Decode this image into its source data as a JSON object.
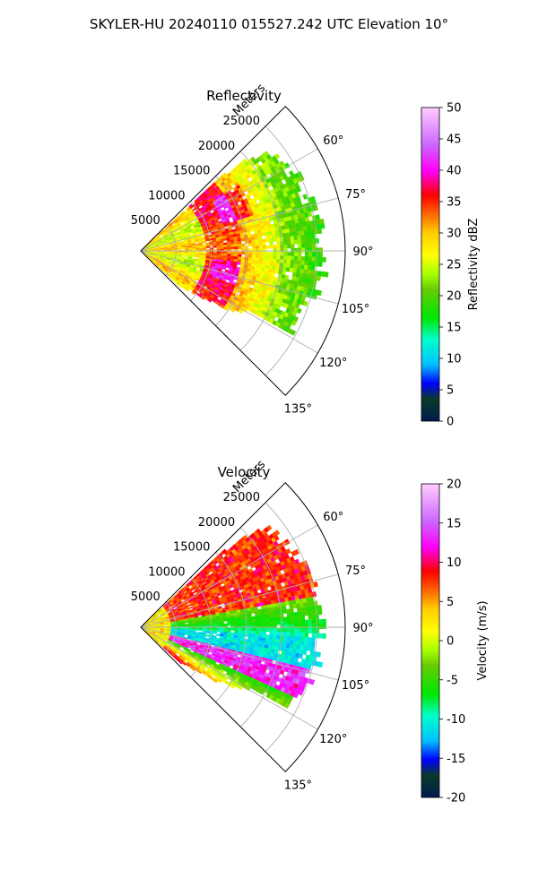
{
  "figure": {
    "title": "SKYLER-HU  20240110  015527.242 UTC Elevation 10°"
  },
  "chart_data": [
    {
      "type": "heatmap",
      "projection": "polar-sector",
      "title": "Reflectivity",
      "radial_label": "Meters",
      "radial_ticks": [
        5000,
        10000,
        15000,
        20000,
        25000
      ],
      "radial_max": 29000,
      "azimuth_ticks": [
        "60°",
        "75°",
        "90°",
        "105°",
        "120°",
        "135°"
      ],
      "azimuth_range_deg": [
        45,
        135
      ],
      "grid": true,
      "colorbar": {
        "label": "Reflectivity dBZ",
        "ticks": [
          0,
          5,
          10,
          15,
          20,
          25,
          30,
          35,
          40,
          45,
          50
        ],
        "range": [
          0,
          50
        ],
        "colormap": [
          "#001a4d",
          "#0a3b2a",
          "#0000ff",
          "#00bfff",
          "#00ffcc",
          "#00e600",
          "#66cc00",
          "#aaff00",
          "#ffff00",
          "#ffcc00",
          "#ff6600",
          "#ff0000",
          "#ff00ff",
          "#cc66ff",
          "#ffccff"
        ]
      },
      "field_summary": [
        {
          "range_m": [
            0,
            9000
          ],
          "value": 28
        },
        {
          "range_m": [
            9000,
            14000
          ],
          "value": 36
        },
        {
          "range_m": [
            14000,
            20000
          ],
          "value": 31
        },
        {
          "range_m": [
            20000,
            26000
          ],
          "value": 22
        }
      ]
    },
    {
      "type": "heatmap",
      "projection": "polar-sector",
      "title": "Velocity",
      "radial_label": "Meters",
      "radial_ticks": [
        5000,
        10000,
        15000,
        20000,
        25000
      ],
      "radial_max": 29000,
      "azimuth_ticks": [
        "60°",
        "75°",
        "90°",
        "105°",
        "120°",
        "135°"
      ],
      "azimuth_range_deg": [
        45,
        135
      ],
      "grid": true,
      "colorbar": {
        "label": "Velocity (m/s)",
        "ticks": [
          -20,
          -15,
          -10,
          -5,
          0,
          5,
          10,
          15,
          20
        ],
        "range": [
          -20,
          20
        ],
        "colormap": [
          "#001a4d",
          "#0a3b2a",
          "#0000ff",
          "#00bfff",
          "#00ffcc",
          "#00e600",
          "#66cc00",
          "#aaff00",
          "#ffff00",
          "#ffcc00",
          "#ff6600",
          "#ff0000",
          "#ff00ff",
          "#cc66ff",
          "#ffccff"
        ]
      },
      "field_summary": [
        {
          "azimuth_deg": [
            45,
            80
          ],
          "value": 8
        },
        {
          "azimuth_deg": [
            80,
            95
          ],
          "value": -5
        },
        {
          "azimuth_deg": [
            95,
            105
          ],
          "value": -10
        },
        {
          "azimuth_deg": [
            105,
            115
          ],
          "value": 14
        },
        {
          "azimuth_deg": [
            115,
            130
          ],
          "value": -3
        }
      ]
    }
  ]
}
